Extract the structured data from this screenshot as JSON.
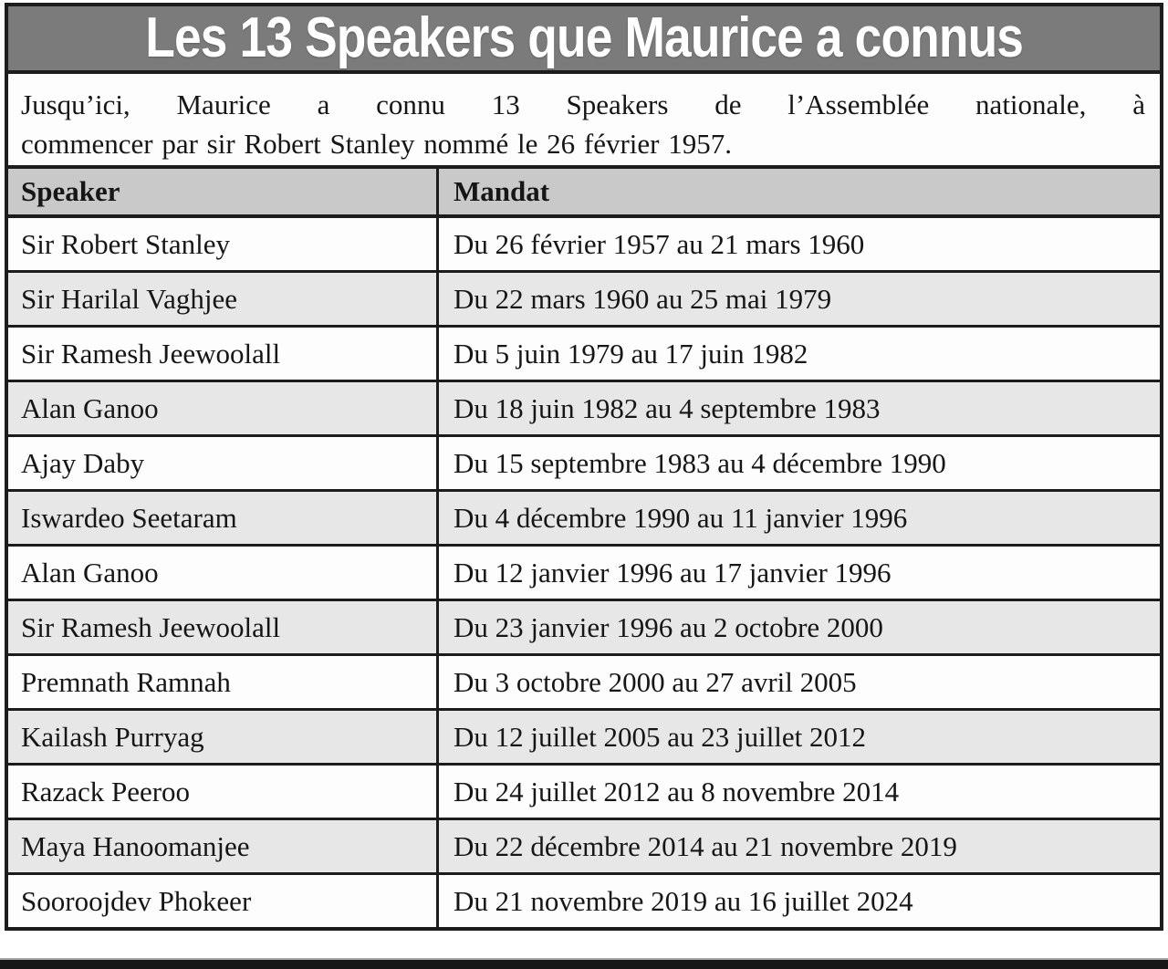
{
  "title": "Les 13 Speakers que Maurice a connus",
  "intro_lines": [
    "Jusqu’ici, Maurice a connu 13 Speakers de l’Assemblée nationale, à",
    "commencer par sir Robert Stanley nommé le 26 février 1957."
  ],
  "table": {
    "columns": [
      "Speaker",
      "Mandat"
    ],
    "rows": [
      [
        "Sir Robert Stanley",
        "Du 26 février 1957 au 21 mars 1960"
      ],
      [
        "Sir Harilal Vaghjee",
        "Du 22 mars 1960 au 25 mai 1979"
      ],
      [
        "Sir Ramesh Jeewoolall",
        "Du 5 juin 1979 au 17 juin 1982"
      ],
      [
        "Alan Ganoo",
        "Du 18 juin 1982 au 4 septembre 1983"
      ],
      [
        "Ajay Daby",
        "Du 15 septembre 1983 au 4 décembre 1990"
      ],
      [
        "Iswardeo Seetaram",
        "Du 4 décembre 1990 au 11 janvier 1996"
      ],
      [
        "Alan Ganoo",
        "Du 12 janvier 1996 au 17 janvier 1996"
      ],
      [
        "Sir Ramesh Jeewoolall",
        "Du 23 janvier 1996 au 2 octobre 2000"
      ],
      [
        "Premnath Ramnah",
        "Du 3 octobre 2000 au 27 avril 2005"
      ],
      [
        "Kailash Purryag",
        "Du 12 juillet 2005 au 23 juillet 2012"
      ],
      [
        "Razack Peeroo",
        "Du 24 juillet 2012 au 8 novembre 2014"
      ],
      [
        "Maya Hanoomanjee",
        "Du 22 décembre 2014 au 21 novembre 2019"
      ],
      [
        "Sooroojdev Phokeer",
        "Du 21 novembre 2019 au 16 juillet 2024"
      ]
    ]
  },
  "colors": {
    "title_bg": "#7b7b7b",
    "title_text": "#ffffff",
    "header_row_bg": "#c9c9c9",
    "alt_row_bg": "#e7e7e7",
    "row_bg": "#fdfdfd",
    "border": "#1c1c1c"
  }
}
